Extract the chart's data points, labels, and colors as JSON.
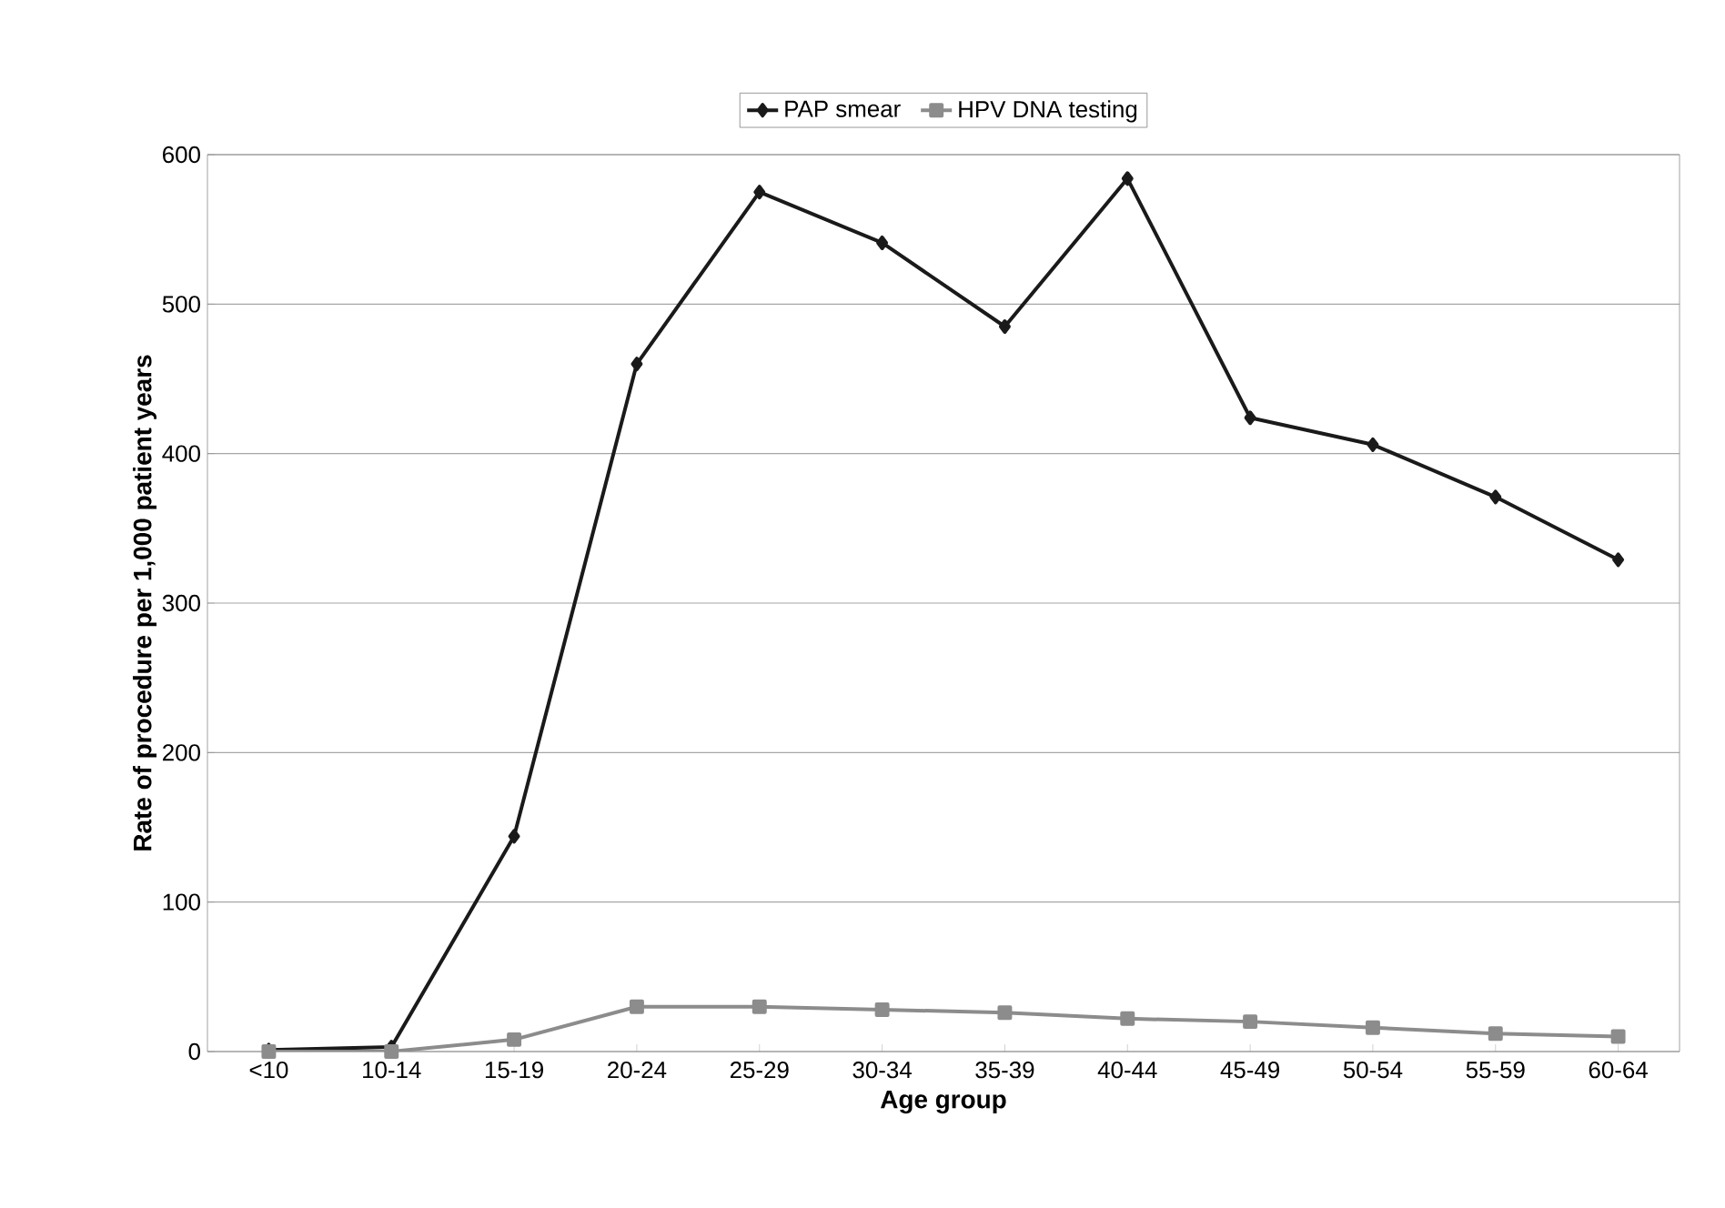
{
  "chart_data": {
    "type": "line",
    "xlabel": "Age group",
    "ylabel": "Rate of procedure per 1,000 patient years",
    "categories": [
      "<10",
      "10-14",
      "15-19",
      "20-24",
      "25-29",
      "30-34",
      "35-39",
      "40-44",
      "45-49",
      "50-54",
      "55-59",
      "60-64"
    ],
    "series": [
      {
        "name": "PAP smear",
        "color": "#1a1a1a",
        "marker": "diamond",
        "values": [
          1,
          3,
          144,
          460,
          575,
          541,
          485,
          584,
          424,
          406,
          371,
          329
        ]
      },
      {
        "name": "HPV DNA testing",
        "color": "#8c8c8c",
        "marker": "square",
        "values": [
          0,
          0,
          8,
          30,
          30,
          28,
          26,
          22,
          20,
          16,
          12,
          10
        ]
      }
    ],
    "ylim": [
      0,
      600
    ],
    "yticks": [
      0,
      100,
      200,
      300,
      400,
      500,
      600
    ],
    "grid": "y",
    "legend": "top"
  }
}
